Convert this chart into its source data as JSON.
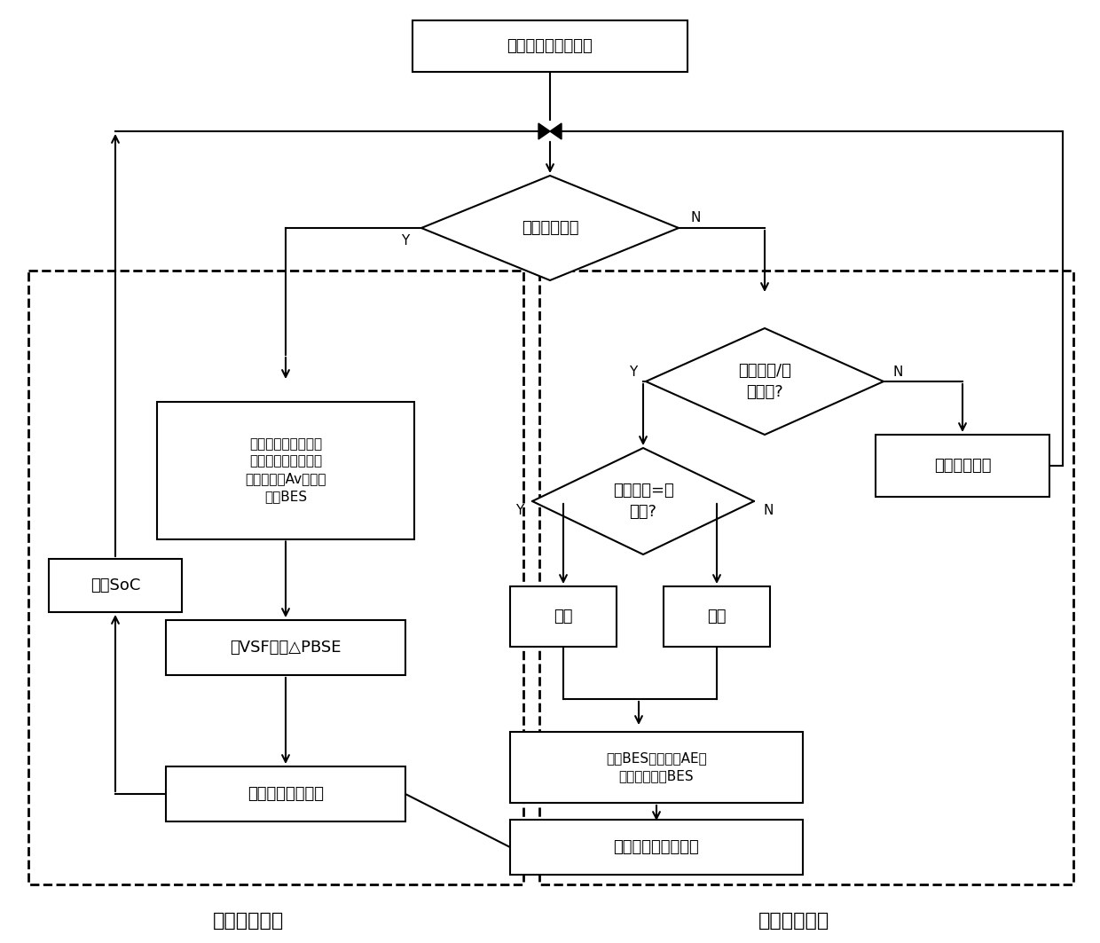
{
  "title": "给定各限值及当前值",
  "d1_text": "是否电压越限",
  "d2_text": "电池容量/功\n率未满?",
  "d3_text": "当前电价=谷\n电价?",
  "lb1_text": "根据各节点电压越限\n情况，计算储能电池\n的评价矩阵Av并选出\n最优BES",
  "lb2_text": "由VSF求出△PBSE",
  "lb3_text": "充放功率调整过程",
  "soc_text": "更新SoC",
  "charge_text": "充电",
  "discharge_text": "放电",
  "next_text": "计算下一时刻",
  "rb1_text": "计算BES评价矩阵AE，\n并选取最优的BES",
  "rb2_text": "充放电功率调整过程",
  "lbl_left": "电压控制部分",
  "lbl_right": "经济优化部分"
}
